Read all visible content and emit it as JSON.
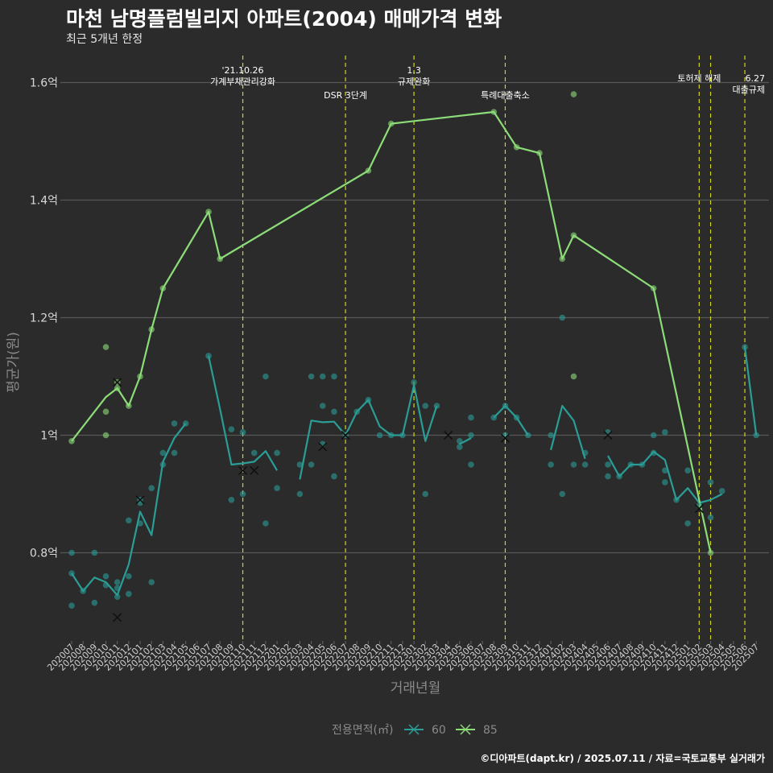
{
  "title": "마천 남명플럼빌리지 아파트(2004) 매매가격 변화",
  "subtitle": "최근 5개년 한정",
  "caption": "©디아파트(dapt.kr) / 2025.07.11 / 자료=국토교통부 실거래가",
  "chart_data": {
    "type": "line",
    "xlabel": "거래년월",
    "ylabel": "평균가(원)",
    "ylim": [
      0.65,
      1.65
    ],
    "yticks": [
      {
        "value": 0.8,
        "label": "0.8억"
      },
      {
        "value": 1.0,
        "label": "1억"
      },
      {
        "value": 1.2,
        "label": "1.2억"
      },
      {
        "value": 1.4,
        "label": "1.4억"
      },
      {
        "value": 1.6,
        "label": "1.6억"
      }
    ],
    "grid": true,
    "legend_title": "전용면적(㎡)",
    "legend_position": "bottom",
    "colors": {
      "60": "#2a9d96",
      "85": "#8cdc78",
      "vline": "#d4d41e",
      "cross": "#111111"
    },
    "categories": [
      "202007",
      "202008",
      "202009",
      "202010",
      "202011",
      "202012",
      "202101",
      "202102",
      "202103",
      "202104",
      "202105",
      "202106",
      "202107",
      "202108",
      "202109",
      "202110",
      "202111",
      "202112",
      "202201",
      "202202",
      "202203",
      "202204",
      "202205",
      "202206",
      "202207",
      "202208",
      "202209",
      "202210",
      "202211",
      "202212",
      "202301",
      "202302",
      "202303",
      "202304",
      "202305",
      "202306",
      "202307",
      "202308",
      "202309",
      "202310",
      "202311",
      "202312",
      "202401",
      "202402",
      "202403",
      "202404",
      "202405",
      "202406",
      "202407",
      "202408",
      "202409",
      "202410",
      "202411",
      "202412",
      "202501",
      "202502",
      "202503",
      "202504",
      "202505",
      "202506",
      "202507"
    ],
    "series": [
      {
        "name": "60",
        "segments": [
          [
            [
              "202007",
              0.765
            ],
            [
              "202008",
              0.735
            ],
            [
              "202009",
              0.758
            ],
            [
              "202010",
              0.75
            ],
            [
              "202011",
              0.728
            ],
            [
              "202012",
              0.78
            ],
            [
              "202101",
              0.87
            ],
            [
              "202102",
              0.83
            ],
            [
              "202103",
              0.955
            ],
            [
              "202104",
              0.995
            ],
            [
              "202105",
              1.02
            ]
          ],
          [
            [
              "202107",
              1.135
            ],
            [
              "202108",
              1.045
            ],
            [
              "202109",
              0.95
            ],
            [
              "202110",
              0.952
            ],
            [
              "202111",
              0.955
            ],
            [
              "202112",
              0.973
            ],
            [
              "202201",
              0.94
            ]
          ],
          [
            [
              "202203",
              0.925
            ],
            [
              "202204",
              1.025
            ],
            [
              "202205",
              1.022
            ],
            [
              "202206",
              1.023
            ],
            [
              "202207",
              1.0
            ],
            [
              "202208",
              1.04
            ],
            [
              "202209",
              1.06
            ],
            [
              "202210",
              1.015
            ],
            [
              "202211",
              1.0
            ],
            [
              "202212",
              1.0
            ],
            [
              "202301",
              1.085
            ],
            [
              "202302",
              0.99
            ],
            [
              "202303",
              1.05
            ]
          ],
          [
            [
              "202305",
              0.985
            ],
            [
              "202306",
              0.995
            ]
          ],
          [
            [
              "202308",
              1.03
            ],
            [
              "202309",
              1.05
            ],
            [
              "202310",
              1.03
            ],
            [
              "202311",
              1.0
            ]
          ],
          [
            [
              "202401",
              0.975
            ],
            [
              "202402",
              1.05
            ],
            [
              "202403",
              1.025
            ],
            [
              "202404",
              0.96
            ]
          ],
          [
            [
              "202406",
              0.965
            ],
            [
              "202407",
              0.93
            ],
            [
              "202408",
              0.95
            ],
            [
              "202409",
              0.95
            ],
            [
              "202410",
              0.972
            ],
            [
              "202411",
              0.958
            ],
            [
              "202412",
              0.89
            ],
            [
              "202501",
              0.91
            ],
            [
              "202502",
              0.885
            ],
            [
              "202503",
              0.89
            ],
            [
              "202504",
              0.9
            ]
          ],
          [
            [
              "202506",
              1.15
            ],
            [
              "202507",
              1.0
            ]
          ]
        ],
        "points": [
          [
            "202007",
            0.8
          ],
          [
            "202007",
            0.765
          ],
          [
            "202007",
            0.71
          ],
          [
            "202008",
            0.735
          ],
          [
            "202009",
            0.8
          ],
          [
            "202009",
            0.715
          ],
          [
            "202010",
            0.76
          ],
          [
            "202010",
            0.745
          ],
          [
            "202011",
            0.75
          ],
          [
            "202011",
            0.74
          ],
          [
            "202011",
            0.725
          ],
          [
            "202012",
            0.855
          ],
          [
            "202012",
            0.76
          ],
          [
            "202012",
            0.73
          ],
          [
            "202101",
            0.89
          ],
          [
            "202101",
            0.885
          ],
          [
            "202101",
            0.85
          ],
          [
            "202102",
            0.91
          ],
          [
            "202102",
            0.75
          ],
          [
            "202103",
            0.97
          ],
          [
            "202103",
            0.95
          ],
          [
            "202104",
            1.02
          ],
          [
            "202104",
            0.97
          ],
          [
            "202105",
            1.02
          ],
          [
            "202107",
            1.135
          ],
          [
            "202109",
            1.01
          ],
          [
            "202109",
            0.89
          ],
          [
            "202110",
            1.005
          ],
          [
            "202110",
            0.9
          ],
          [
            "202111",
            0.97
          ],
          [
            "202112",
            1.1
          ],
          [
            "202112",
            0.85
          ],
          [
            "202201",
            0.97
          ],
          [
            "202201",
            0.91
          ],
          [
            "202203",
            0.9
          ],
          [
            "202203",
            0.95
          ],
          [
            "202204",
            1.1
          ],
          [
            "202204",
            0.95
          ],
          [
            "202205",
            1.1
          ],
          [
            "202205",
            1.05
          ],
          [
            "202205",
            0.985
          ],
          [
            "202206",
            1.1
          ],
          [
            "202206",
            1.04
          ],
          [
            "202206",
            0.93
          ],
          [
            "202207",
            1.0
          ],
          [
            "202208",
            1.04
          ],
          [
            "202209",
            1.06
          ],
          [
            "202210",
            1.0
          ],
          [
            "202211",
            1.0
          ],
          [
            "202212",
            1.0
          ],
          [
            "202301",
            1.09
          ],
          [
            "202302",
            1.05
          ],
          [
            "202302",
            0.9
          ],
          [
            "202303",
            1.05
          ],
          [
            "202305",
            0.99
          ],
          [
            "202305",
            0.98
          ],
          [
            "202306",
            1.03
          ],
          [
            "202306",
            1.0
          ],
          [
            "202306",
            0.95
          ],
          [
            "202308",
            1.03
          ],
          [
            "202309",
            1.05
          ],
          [
            "202309",
            1.0
          ],
          [
            "202310",
            1.03
          ],
          [
            "202311",
            1.0
          ],
          [
            "202401",
            1.0
          ],
          [
            "202401",
            0.95
          ],
          [
            "202402",
            1.2
          ],
          [
            "202402",
            0.9
          ],
          [
            "202403",
            0.95
          ],
          [
            "202404",
            0.97
          ],
          [
            "202404",
            0.95
          ],
          [
            "202406",
            1.005
          ],
          [
            "202406",
            0.95
          ],
          [
            "202406",
            0.93
          ],
          [
            "202407",
            0.93
          ],
          [
            "202408",
            0.95
          ],
          [
            "202409",
            0.95
          ],
          [
            "202410",
            1.0
          ],
          [
            "202410",
            0.97
          ],
          [
            "202411",
            1.005
          ],
          [
            "202411",
            0.94
          ],
          [
            "202411",
            0.92
          ],
          [
            "202412",
            0.89
          ],
          [
            "202501",
            0.94
          ],
          [
            "202501",
            0.85
          ],
          [
            "202502",
            0.88
          ],
          [
            "202503",
            0.92
          ],
          [
            "202503",
            0.86
          ],
          [
            "202504",
            0.905
          ],
          [
            "202506",
            1.15
          ],
          [
            "202507",
            1.0
          ]
        ],
        "crosses": [
          [
            "202011",
            0.69
          ],
          [
            "202101",
            0.89
          ],
          [
            "202110",
            0.94
          ],
          [
            "202111",
            0.94
          ],
          [
            "202205",
            0.98
          ],
          [
            "202207",
            1.0
          ],
          [
            "202304",
            1.0
          ],
          [
            "202309",
            0.995
          ],
          [
            "202406",
            1.0
          ],
          [
            "202502",
            0.875
          ]
        ]
      },
      {
        "name": "85",
        "segments": [
          [
            [
              "202007",
              0.99
            ],
            [
              "202010",
              1.065
            ],
            [
              "202011",
              1.08
            ],
            [
              "202012",
              1.05
            ],
            [
              "202101",
              1.1
            ],
            [
              "202102",
              1.18
            ],
            [
              "202103",
              1.25
            ],
            [
              "202107",
              1.38
            ],
            [
              "202108",
              1.3
            ],
            [
              "202209",
              1.45
            ],
            [
              "202211",
              1.53
            ],
            [
              "202308",
              1.55
            ],
            [
              "202310",
              1.49
            ],
            [
              "202312",
              1.48
            ],
            [
              "202402",
              1.3
            ],
            [
              "202403",
              1.34
            ],
            [
              "202410",
              1.25
            ],
            [
              "202503",
              0.8
            ]
          ]
        ],
        "points": [
          [
            "202007",
            0.99
          ],
          [
            "202010",
            1.15
          ],
          [
            "202010",
            1.04
          ],
          [
            "202010",
            1.0
          ],
          [
            "202011",
            1.09
          ],
          [
            "202011",
            1.08
          ],
          [
            "202012",
            1.05
          ],
          [
            "202101",
            1.1
          ],
          [
            "202102",
            1.18
          ],
          [
            "202103",
            1.25
          ],
          [
            "202107",
            1.38
          ],
          [
            "202108",
            1.3
          ],
          [
            "202209",
            1.45
          ],
          [
            "202211",
            1.53
          ],
          [
            "202308",
            1.55
          ],
          [
            "202310",
            1.49
          ],
          [
            "202312",
            1.48
          ],
          [
            "202402",
            1.3
          ],
          [
            "202403",
            1.58
          ],
          [
            "202403",
            1.34
          ],
          [
            "202403",
            1.1
          ],
          [
            "202410",
            1.25
          ],
          [
            "202503",
            0.8
          ]
        ],
        "crosses": [
          [
            "202011",
            1.09
          ]
        ]
      }
    ],
    "annotations": [
      {
        "x": "202110",
        "lines": [
          "'21.10.26",
          "가계부채관리강화"
        ],
        "row": 0
      },
      {
        "x": "202207",
        "lines": [
          "DSR 3단계"
        ],
        "row": 2
      },
      {
        "x": "202301",
        "lines": [
          "1.3",
          "규제완화"
        ],
        "row": 0
      },
      {
        "x": "202309",
        "lines": [
          "특례대출축소"
        ],
        "row": 2
      },
      {
        "x": "202502",
        "lines": [
          "토허제 해제"
        ],
        "row": 1
      },
      {
        "x": "202503",
        "lines": [],
        "row": 1
      },
      {
        "x": "202506",
        "lines": [
          "6.27",
          "대출규제"
        ],
        "row": 1
      }
    ]
  }
}
